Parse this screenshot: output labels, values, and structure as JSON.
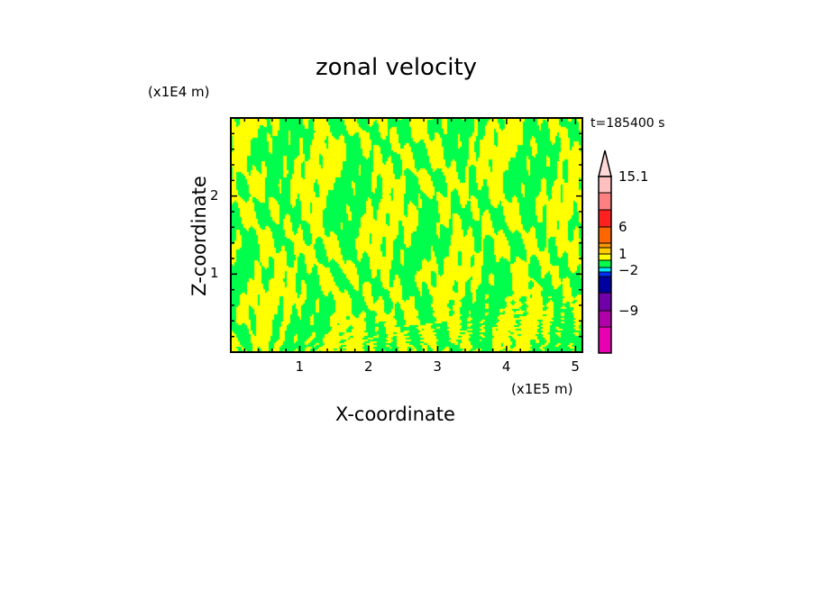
{
  "chart_data": {
    "type": "heatmap",
    "title": "zonal velocity",
    "xlabel": "X-coordinate",
    "ylabel": "Z-coordinate",
    "x_unit": "(x1E5 m)",
    "y_unit": "(x1E4 m)",
    "time_label": "t=185400 s",
    "xlim": [
      0,
      5.1
    ],
    "ylim": [
      0,
      3.0
    ],
    "xticks": [
      "1",
      "2",
      "3",
      "4",
      "5"
    ],
    "xtick_values": [
      1,
      2,
      3,
      4,
      5
    ],
    "yticks": [
      "1",
      "2"
    ],
    "ytick_values": [
      1,
      2
    ],
    "dominant_colors": [
      "#00ff4c",
      "#ffff00"
    ],
    "colorbar": {
      "labels": [
        "15.1",
        "6",
        "1",
        "−2",
        "−9"
      ],
      "label_values": [
        15.1,
        6,
        1,
        -2,
        -9
      ],
      "extend": "max",
      "colors": [
        "#ffd8d8",
        "#ffc0c0",
        "#ff8080",
        "#ff2020",
        "#ff6600",
        "#ff9900",
        "#ffcc00",
        "#ffff00",
        "#00ff4c",
        "#00e8ff",
        "#0030ff",
        "#0000a0",
        "#7000a8",
        "#b000a8",
        "#e800b0"
      ]
    }
  }
}
